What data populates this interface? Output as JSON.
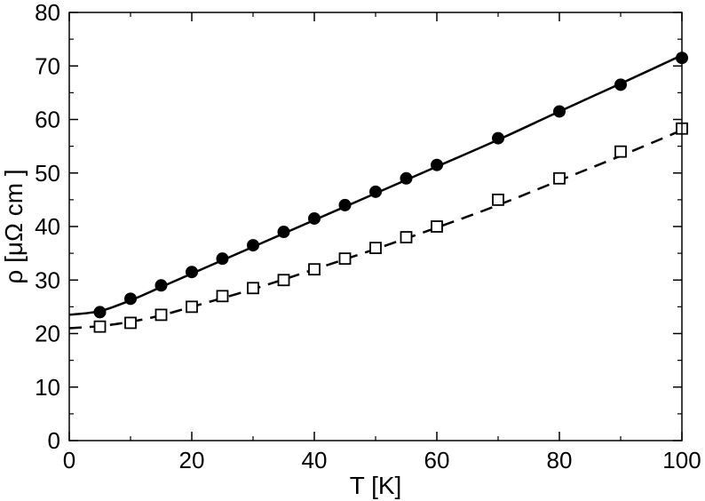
{
  "chart_data": {
    "type": "scatter",
    "title": "",
    "xlabel": "T [K]",
    "ylabel": "ρ [μΩ cm ]",
    "xlim": [
      0,
      100
    ],
    "ylim": [
      0,
      80
    ],
    "x_ticks": [
      0,
      20,
      40,
      60,
      80,
      100
    ],
    "y_ticks": [
      0,
      10,
      20,
      30,
      40,
      50,
      60,
      70,
      80
    ],
    "grid": false,
    "series": [
      {
        "marker": "filled-circle",
        "color": "#000000",
        "x": [
          5,
          10,
          15,
          20,
          25,
          30,
          35,
          40,
          45,
          50,
          55,
          60,
          70,
          80,
          90,
          100
        ],
        "y": [
          24,
          26.5,
          29,
          31.5,
          34,
          36.5,
          39,
          41.5,
          44,
          46.5,
          49,
          51.5,
          56.5,
          61.5,
          66.5,
          71.5
        ]
      },
      {
        "marker": "open-square",
        "color": "#000000",
        "x": [
          5,
          10,
          15,
          20,
          25,
          30,
          35,
          40,
          45,
          50,
          55,
          60,
          70,
          80,
          90,
          100
        ],
        "y": [
          21.3,
          22,
          23.5,
          25,
          27,
          28.5,
          30,
          32,
          34,
          36,
          38,
          40,
          45,
          49,
          54,
          58.3
        ]
      },
      {
        "line_style": "solid",
        "color": "#000000",
        "x": [
          0,
          5,
          10,
          15,
          20,
          30,
          40,
          50,
          60,
          70,
          80,
          90,
          100
        ],
        "y": [
          23.5,
          24.2,
          26.2,
          28.7,
          31.2,
          36.2,
          41.2,
          46.2,
          51.2,
          56.2,
          61.5,
          66.7,
          72
        ]
      },
      {
        "line_style": "dashed",
        "color": "#000000",
        "x": [
          0,
          5,
          10,
          15,
          20,
          30,
          40,
          50,
          60,
          70,
          80,
          90,
          100
        ],
        "y": [
          21,
          21.4,
          22.2,
          23.4,
          25,
          28.3,
          32,
          35.8,
          39.8,
          44,
          48.6,
          53.2,
          58
        ]
      }
    ]
  }
}
